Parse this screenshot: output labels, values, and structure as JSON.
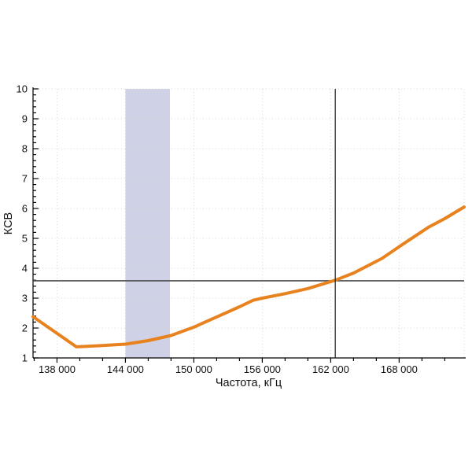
{
  "chart_data": {
    "type": "line",
    "title": "",
    "xlabel": "Частота, кГц",
    "ylabel": "КСВ",
    "xlim": [
      135900,
      173700
    ],
    "ylim": [
      1,
      10
    ],
    "grid": "dotted gridlines at major ticks, both axes; dotted top and right border",
    "legend_position": "none",
    "x_major_ticks": [
      {
        "value": 138000,
        "label": "138 000"
      },
      {
        "value": 144000,
        "label": "144 000"
      },
      {
        "value": 150000,
        "label": "150 000"
      },
      {
        "value": 156000,
        "label": "156 000"
      },
      {
        "value": 162000,
        "label": "162 000"
      },
      {
        "value": 168000,
        "label": "168 000"
      }
    ],
    "x_minor_step": 2000,
    "y_major_ticks": [
      {
        "value": 1,
        "label": "1"
      },
      {
        "value": 2,
        "label": "2"
      },
      {
        "value": 3,
        "label": "3"
      },
      {
        "value": 4,
        "label": "4"
      },
      {
        "value": 5,
        "label": "5"
      },
      {
        "value": 6,
        "label": "6"
      },
      {
        "value": 7,
        "label": "7"
      },
      {
        "value": 8,
        "label": "8"
      },
      {
        "value": 9,
        "label": "9"
      },
      {
        "value": 10,
        "label": "10"
      }
    ],
    "y_minor_step": 0.2,
    "series": [
      {
        "name": "КСВ",
        "color": "#e8821e",
        "points": [
          [
            135900,
            2.38
          ],
          [
            139700,
            1.37
          ],
          [
            141800,
            1.41
          ],
          [
            144000,
            1.46
          ],
          [
            146000,
            1.58
          ],
          [
            148000,
            1.75
          ],
          [
            150000,
            2.03
          ],
          [
            152000,
            2.37
          ],
          [
            154000,
            2.71
          ],
          [
            155200,
            2.93
          ],
          [
            156000,
            3.0
          ],
          [
            158000,
            3.15
          ],
          [
            160000,
            3.32
          ],
          [
            162400,
            3.6
          ],
          [
            164000,
            3.84
          ],
          [
            166500,
            4.33
          ],
          [
            168000,
            4.72
          ],
          [
            170600,
            5.38
          ],
          [
            172000,
            5.66
          ],
          [
            173700,
            6.05
          ]
        ]
      }
    ],
    "highlight_band": {
      "x_start": 144000,
      "x_end": 147900,
      "color": "#cfd2e6"
    },
    "crosshair": {
      "x": 162400,
      "y": 3.58,
      "v_color": "#1a1a1a",
      "h_color": "#4d4d4d"
    },
    "colors": {
      "background": "#ffffff",
      "axis": "#000000",
      "grid": "#d6d6d6",
      "text": "#111111"
    }
  }
}
